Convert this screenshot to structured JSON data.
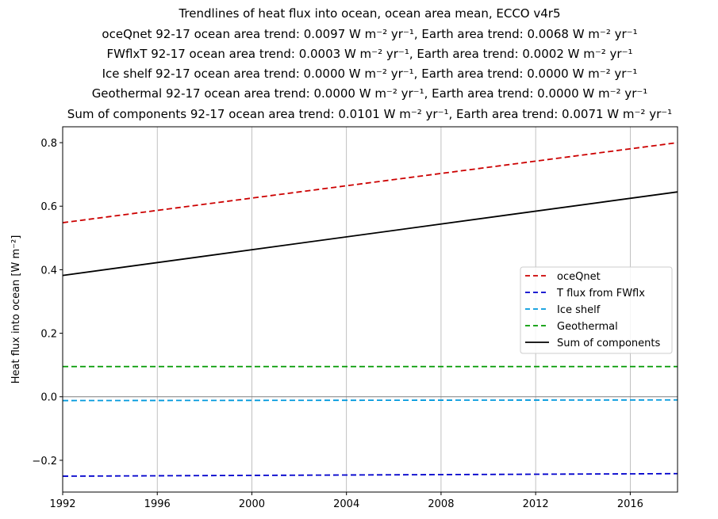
{
  "chart_data": {
    "type": "line",
    "title_lines": [
      "Trendlines of heat flux into ocean, ocean area mean, ECCO v4r5",
      "oceQnet 92-17 ocean area trend: 0.0097 W m⁻² yr⁻¹, Earth area trend: 0.0068 W m⁻² yr⁻¹",
      "FWflxT 92-17 ocean area trend: 0.0003 W m⁻² yr⁻¹, Earth area trend: 0.0002 W m⁻² yr⁻¹",
      "Ice shelf 92-17 ocean area trend: 0.0000 W m⁻² yr⁻¹, Earth area trend: 0.0000 W m⁻² yr⁻¹",
      "Geothermal 92-17 ocean area trend: 0.0000 W m⁻² yr⁻¹, Earth area trend: 0.0000 W m⁻² yr⁻¹",
      "Sum of components 92-17 ocean area trend: 0.0101 W m⁻² yr⁻¹, Earth area trend: 0.0071 W m⁻² yr⁻¹"
    ],
    "xlabel": "",
    "ylabel": "Heat flux into ocean [W m⁻²]",
    "xlim": [
      1992,
      2018
    ],
    "ylim": [
      -0.3,
      0.85
    ],
    "xticks": [
      1992,
      1996,
      2000,
      2004,
      2008,
      2012,
      2016
    ],
    "yticks": [
      -0.2,
      0.0,
      0.2,
      0.4,
      0.6,
      0.8
    ],
    "ytick_labels": [
      "−0.2",
      "0.0",
      "0.2",
      "0.4",
      "0.6",
      "0.8"
    ],
    "grid": "vertical",
    "zero_line": true,
    "legend_position": "center-right",
    "series": [
      {
        "name": "oceQnet",
        "color": "#cc0000",
        "style": "dashed",
        "x": [
          1992,
          2018
        ],
        "y": [
          0.548,
          0.8
        ]
      },
      {
        "name": "T flux from FWflx",
        "color": "#0000cc",
        "style": "dashed",
        "x": [
          1992,
          2018
        ],
        "y": [
          -0.25,
          -0.242
        ]
      },
      {
        "name": "Ice shelf",
        "color": "#0099dd",
        "style": "dashed",
        "x": [
          1992,
          2018
        ],
        "y": [
          -0.012,
          -0.01
        ]
      },
      {
        "name": "Geothermal",
        "color": "#009900",
        "style": "dashed",
        "x": [
          1992,
          2018
        ],
        "y": [
          0.095,
          0.095
        ]
      },
      {
        "name": "Sum of components",
        "color": "#000000",
        "style": "solid",
        "x": [
          1992,
          2018
        ],
        "y": [
          0.382,
          0.645
        ]
      }
    ]
  }
}
